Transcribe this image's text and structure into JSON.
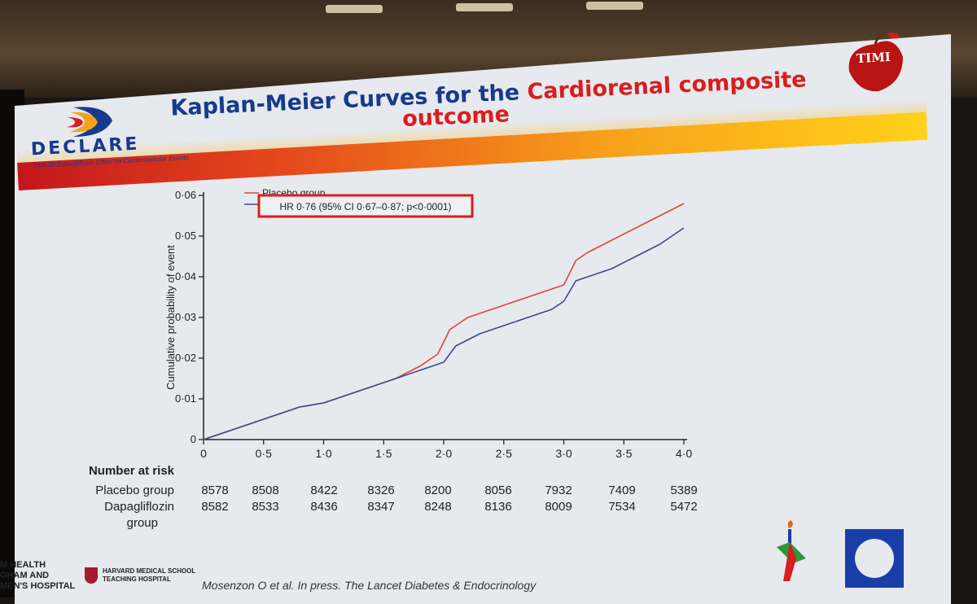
{
  "slide": {
    "title_part1": "Kaplan-Meier Curves for the",
    "title_part2": "Cardiorenal composite",
    "title_part3": "outcome",
    "declare_logo": "DECLARE",
    "declare_trial": "TIMI-58",
    "declare_subtitle": "Dapagliflozin Effect on Cardiovascular Events",
    "timi_logo": "TIMI",
    "hr_annotation": "HR 0·76 (95% CI 0·67–0·87; p<0·0001)",
    "citation": "Mosenzon O et al. In press. The Lancet Diabetes & Endocrinology",
    "harvard_line1": "HARVARD MEDICAL SCHOOL",
    "harvard_line2": "TEACHING HOSPITAL",
    "hospital_line1": "M HEALTH",
    "hospital_line2": "GHAM AND",
    "hospital_line3": "MEN'S HOSPITAL",
    "colors": {
      "title_blue": "#163a8c",
      "title_red": "#d81e1e",
      "placebo": "#e0443c",
      "dapagliflozin": "#3c4a86",
      "annotation_box": "#d81e1e"
    }
  },
  "risk_table": {
    "header": "Number at risk",
    "rows": [
      {
        "label": "Placebo group",
        "values": [
          "8578",
          "8508",
          "8422",
          "8326",
          "8200",
          "8056",
          "7932",
          "7409",
          "5389"
        ]
      },
      {
        "label": "Dapagliflozin",
        "label2": "group",
        "values": [
          "8582",
          "8533",
          "8436",
          "8347",
          "8248",
          "8136",
          "8009",
          "7534",
          "5472"
        ]
      }
    ]
  },
  "chart_data": {
    "type": "line",
    "title": "",
    "xlabel": "",
    "ylabel": "Cumulative probability of event",
    "xlim": [
      0,
      4.0
    ],
    "ylim": [
      0,
      0.06
    ],
    "x_ticks": [
      "0",
      "0·5",
      "1·0",
      "1·5",
      "2·0",
      "2·5",
      "3·0",
      "3·5",
      "4·0"
    ],
    "x_tick_values": [
      0,
      0.5,
      1.0,
      1.5,
      2.0,
      2.5,
      3.0,
      3.5,
      4.0
    ],
    "y_ticks": [
      "0",
      "0·01",
      "0·02",
      "0·03",
      "0·04",
      "0·05",
      "0·06"
    ],
    "y_tick_values": [
      0,
      0.01,
      0.02,
      0.03,
      0.04,
      0.05,
      0.06
    ],
    "legend_position": "top-left",
    "series": [
      {
        "name": "Placebo group",
        "color": "#e0443c",
        "x": [
          0,
          0.2,
          0.4,
          0.6,
          0.8,
          1.0,
          1.2,
          1.4,
          1.6,
          1.8,
          1.95,
          2.05,
          2.2,
          2.4,
          2.6,
          2.8,
          3.0,
          3.1,
          3.2,
          3.4,
          3.6,
          3.8,
          4.0
        ],
        "y": [
          0,
          0.002,
          0.004,
          0.006,
          0.008,
          0.009,
          0.011,
          0.013,
          0.015,
          0.018,
          0.021,
          0.027,
          0.03,
          0.032,
          0.034,
          0.036,
          0.038,
          0.044,
          0.046,
          0.049,
          0.052,
          0.055,
          0.058
        ]
      },
      {
        "name": "Dapagliflozin group",
        "color": "#3c4a86",
        "x": [
          0,
          0.2,
          0.4,
          0.6,
          0.8,
          1.0,
          1.2,
          1.4,
          1.6,
          1.8,
          2.0,
          2.1,
          2.3,
          2.5,
          2.7,
          2.9,
          3.0,
          3.1,
          3.2,
          3.4,
          3.6,
          3.8,
          4.0
        ],
        "y": [
          0,
          0.002,
          0.004,
          0.006,
          0.008,
          0.009,
          0.011,
          0.013,
          0.015,
          0.017,
          0.019,
          0.023,
          0.026,
          0.028,
          0.03,
          0.032,
          0.034,
          0.039,
          0.04,
          0.042,
          0.045,
          0.048,
          0.052
        ]
      }
    ]
  }
}
